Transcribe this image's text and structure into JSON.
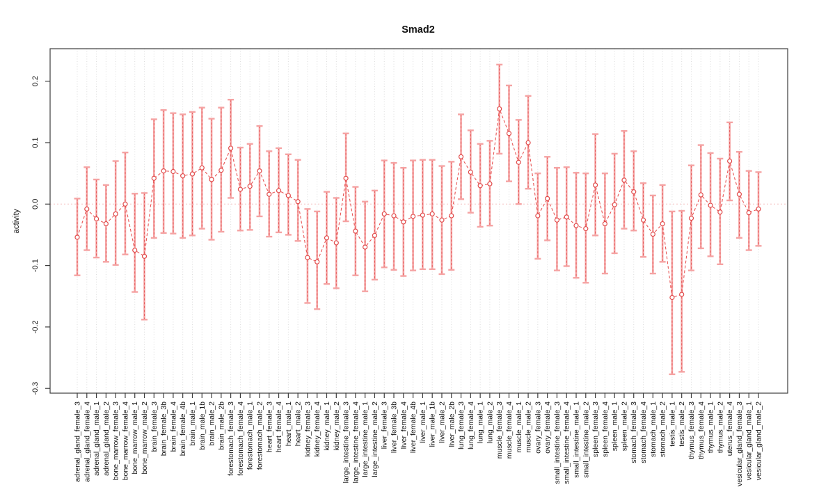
{
  "chart_data": {
    "type": "scatter",
    "subtype": "points-with-error-bars-and-dashed-connector",
    "title": "Smad2",
    "xlabel": "",
    "ylabel": "activity",
    "ylim": [
      -0.3,
      0.25
    ],
    "ytick_labels": [
      "0.2",
      "0.1",
      "0.0",
      "-0.1",
      "-0.2",
      "-0.3"
    ],
    "grid": "vertical-dotted-per-category",
    "zero_reference_line": true,
    "legend": "none",
    "categories": [
      "adrenal_gland_female_3",
      "adrenal_gland_female_4",
      "adrenal_gland_male_1",
      "adrenal_gland_male_2",
      "bone_marrow_female_3",
      "bone_marrow_female_4",
      "bone_marrow_male_1",
      "bone_marrow_male_2",
      "brain_female_3",
      "brain_female_3b",
      "brain_female_4",
      "brain_female_4b",
      "brain_male_1",
      "brain_male_1b",
      "brain_male_2",
      "brain_male_2b",
      "forestomach_female_3",
      "forestomach_female_4",
      "forestomach_male_1",
      "forestomach_male_2",
      "heart_female_3",
      "heart_female_4",
      "heart_male_1",
      "heart_male_2",
      "kidney_female_3",
      "kidney_female_4",
      "kidney_male_1",
      "kidney_male_2",
      "large_intestine_female_3",
      "large_intestine_female_4",
      "large_intestine_male_1",
      "large_intestine_male_2",
      "liver_female_3",
      "liver_female_3b",
      "liver_female_4",
      "liver_female_4b",
      "liver_male_1",
      "liver_male_1b",
      "liver_male_2",
      "liver_male_2b",
      "lung_female_3",
      "lung_female_4",
      "lung_male_1",
      "lung_male_2",
      "muscle_female_3",
      "muscle_female_4",
      "muscle_male_1",
      "muscle_male_2",
      "ovary_female_3",
      "ovary_female_4",
      "small_intestine_female_3",
      "small_intestine_female_4",
      "small_intestine_male_1",
      "small_intestine_male_2",
      "spleen_female_3",
      "spleen_female_4",
      "spleen_male_1",
      "spleen_male_2",
      "stomach_female_3",
      "stomach_female_4",
      "stomach_male_1",
      "stomach_male_2",
      "testis_male_1",
      "testis_male_2",
      "thymus_female_3",
      "thymus_female_4",
      "thymus_male_1",
      "thymus_male_2",
      "uterus_female_4",
      "vesicular_gland_female_3",
      "vesicular_gland_male_1",
      "vesicular_gland_male_2"
    ],
    "values": [
      -0.054,
      -0.008,
      -0.024,
      -0.032,
      -0.016,
      0.0,
      -0.075,
      -0.085,
      0.042,
      0.054,
      0.053,
      0.046,
      0.049,
      0.059,
      0.04,
      0.055,
      0.091,
      0.024,
      0.029,
      0.054,
      0.016,
      0.022,
      0.014,
      0.004,
      -0.087,
      -0.094,
      -0.055,
      -0.063,
      0.042,
      -0.044,
      -0.07,
      -0.051,
      -0.016,
      -0.019,
      -0.029,
      -0.02,
      -0.018,
      -0.016,
      -0.026,
      -0.019,
      0.077,
      0.052,
      0.03,
      0.033,
      0.155,
      0.115,
      0.068,
      0.1,
      -0.019,
      0.009,
      -0.026,
      -0.021,
      -0.035,
      -0.04,
      0.031,
      -0.032,
      -0.001,
      0.039,
      0.02,
      -0.026,
      -0.049,
      -0.032,
      -0.152,
      -0.147,
      -0.023,
      0.015,
      -0.002,
      -0.013,
      0.07,
      0.016,
      -0.014,
      -0.008
    ],
    "err_hi": [
      0.009,
      0.06,
      0.04,
      0.031,
      0.07,
      0.084,
      0.017,
      0.018,
      0.138,
      0.153,
      0.148,
      0.146,
      0.15,
      0.157,
      0.139,
      0.157,
      0.17,
      0.092,
      0.098,
      0.127,
      0.086,
      0.091,
      0.081,
      0.072,
      -0.008,
      -0.012,
      0.02,
      0.01,
      0.115,
      0.028,
      0.004,
      0.022,
      0.071,
      0.067,
      0.059,
      0.071,
      0.072,
      0.072,
      0.062,
      0.069,
      0.146,
      0.12,
      0.098,
      0.103,
      0.227,
      0.193,
      0.137,
      0.176,
      0.05,
      0.077,
      0.059,
      0.06,
      0.051,
      0.05,
      0.114,
      0.05,
      0.082,
      0.119,
      0.086,
      0.034,
      0.014,
      0.031,
      -0.012,
      -0.011,
      0.063,
      0.096,
      0.083,
      0.074,
      0.133,
      0.085,
      0.054,
      0.052
    ],
    "err_lo": [
      -0.116,
      -0.075,
      -0.087,
      -0.094,
      -0.099,
      -0.082,
      -0.143,
      -0.188,
      -0.055,
      -0.047,
      -0.048,
      -0.055,
      -0.051,
      -0.04,
      -0.058,
      -0.045,
      0.01,
      -0.043,
      -0.042,
      -0.02,
      -0.053,
      -0.046,
      -0.05,
      -0.06,
      -0.161,
      -0.171,
      -0.13,
      -0.137,
      -0.028,
      -0.116,
      -0.142,
      -0.123,
      -0.103,
      -0.107,
      -0.117,
      -0.108,
      -0.106,
      -0.106,
      -0.114,
      -0.107,
      0.008,
      -0.014,
      -0.037,
      -0.035,
      0.082,
      0.037,
      0.0,
      0.025,
      -0.089,
      -0.059,
      -0.108,
      -0.101,
      -0.12,
      -0.128,
      -0.051,
      -0.113,
      -0.08,
      -0.04,
      -0.043,
      -0.086,
      -0.113,
      -0.094,
      -0.277,
      -0.273,
      -0.108,
      -0.072,
      -0.085,
      -0.098,
      0.006,
      -0.055,
      -0.075,
      -0.068
    ],
    "colors": {
      "point": "#e14a4a",
      "connector": "#e85555",
      "errorbar": "#f5a3a3",
      "errorbar_dash": "#e14a4a",
      "zero_line": "#f6bdbd",
      "grid": "#dcdcdc",
      "box": "#3c3c3c",
      "text": "#111111"
    }
  }
}
